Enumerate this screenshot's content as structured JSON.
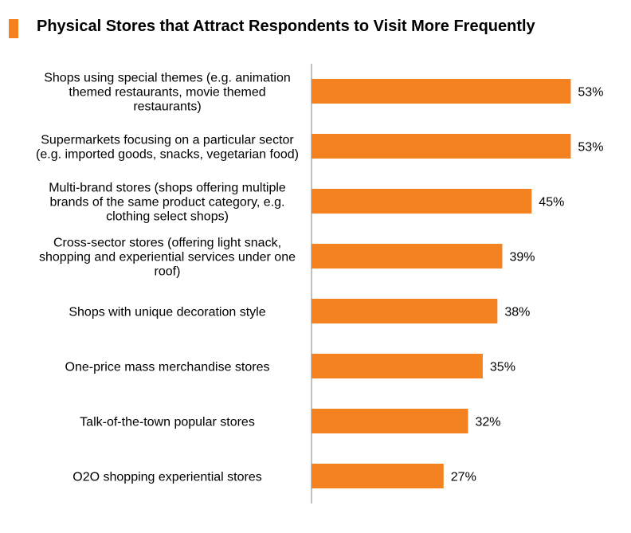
{
  "title": "Physical Stores that Attract Respondents to Visit More Frequently",
  "colors": {
    "bar": "#F58220",
    "axis": "#808080",
    "title_marker": "#F58220"
  },
  "chart_data": {
    "type": "bar",
    "orientation": "horizontal",
    "title": "Physical Stores that Attract Respondents to Visit More Frequently",
    "categories": [
      [
        "Shops using special themes (e.g. animation",
        "themed restaurants, movie themed",
        "restaurants)"
      ],
      [
        "Supermarkets focusing on a particular sector",
        "(e.g. imported goods, snacks, vegetarian food)"
      ],
      [
        "Multi-brand stores (shops offering multiple",
        "brands of the same product category, e.g.",
        "clothing select shops)"
      ],
      [
        "Cross-sector stores (offering light snack,",
        "shopping and experiential services under one",
        "roof)"
      ],
      [
        "Shops with unique decoration style"
      ],
      [
        "One-price mass merchandise stores"
      ],
      [
        "Talk-of-the-town popular stores"
      ],
      [
        "O2O shopping experiential stores"
      ]
    ],
    "values": [
      53,
      53,
      45,
      39,
      38,
      35,
      32,
      27
    ],
    "value_labels": [
      "53%",
      "53%",
      "45%",
      "39%",
      "38%",
      "35%",
      "32%",
      "27%"
    ],
    "xlim": [
      0,
      100
    ],
    "grid": false,
    "legend": "none"
  }
}
